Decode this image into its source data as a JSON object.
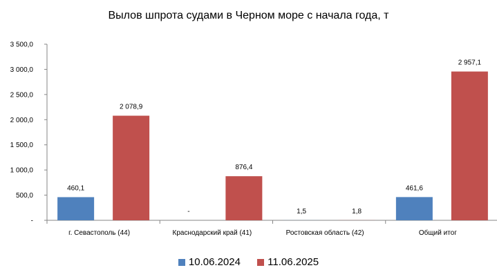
{
  "chart_data": {
    "type": "bar",
    "title": "Вылов шпрота судами в Черном море с начала  года, т",
    "categories": [
      "г. Севастополь (44)",
      "Краснодарский край (41)",
      "Ростовская область (42)",
      "Общий итог"
    ],
    "series": [
      {
        "name": "10.06.2024",
        "color": "#4f81bd",
        "values": [
          460.1,
          null,
          1.5,
          461.6
        ],
        "labels": [
          "460,1",
          "-",
          "1,5",
          "461,6"
        ]
      },
      {
        "name": "11.06.2025",
        "color": "#c0504d",
        "values": [
          2078.9,
          876.4,
          1.8,
          2957.1
        ],
        "labels": [
          "2 078,9",
          "876,4",
          "1,8",
          "2 957,1"
        ]
      }
    ],
    "ylim": [
      0,
      3500
    ],
    "yticks": [
      {
        "value": 0,
        "label": "-"
      },
      {
        "value": 500,
        "label": "500,0"
      },
      {
        "value": 1000,
        "label": "1 000,0"
      },
      {
        "value": 1500,
        "label": "1 500,0"
      },
      {
        "value": 2000,
        "label": "2 000,0"
      },
      {
        "value": 2500,
        "label": "2 500,0"
      },
      {
        "value": 3000,
        "label": "3 000,0"
      },
      {
        "value": 3500,
        "label": "3 500,0"
      }
    ],
    "grid": false,
    "legend_position": "bottom"
  }
}
